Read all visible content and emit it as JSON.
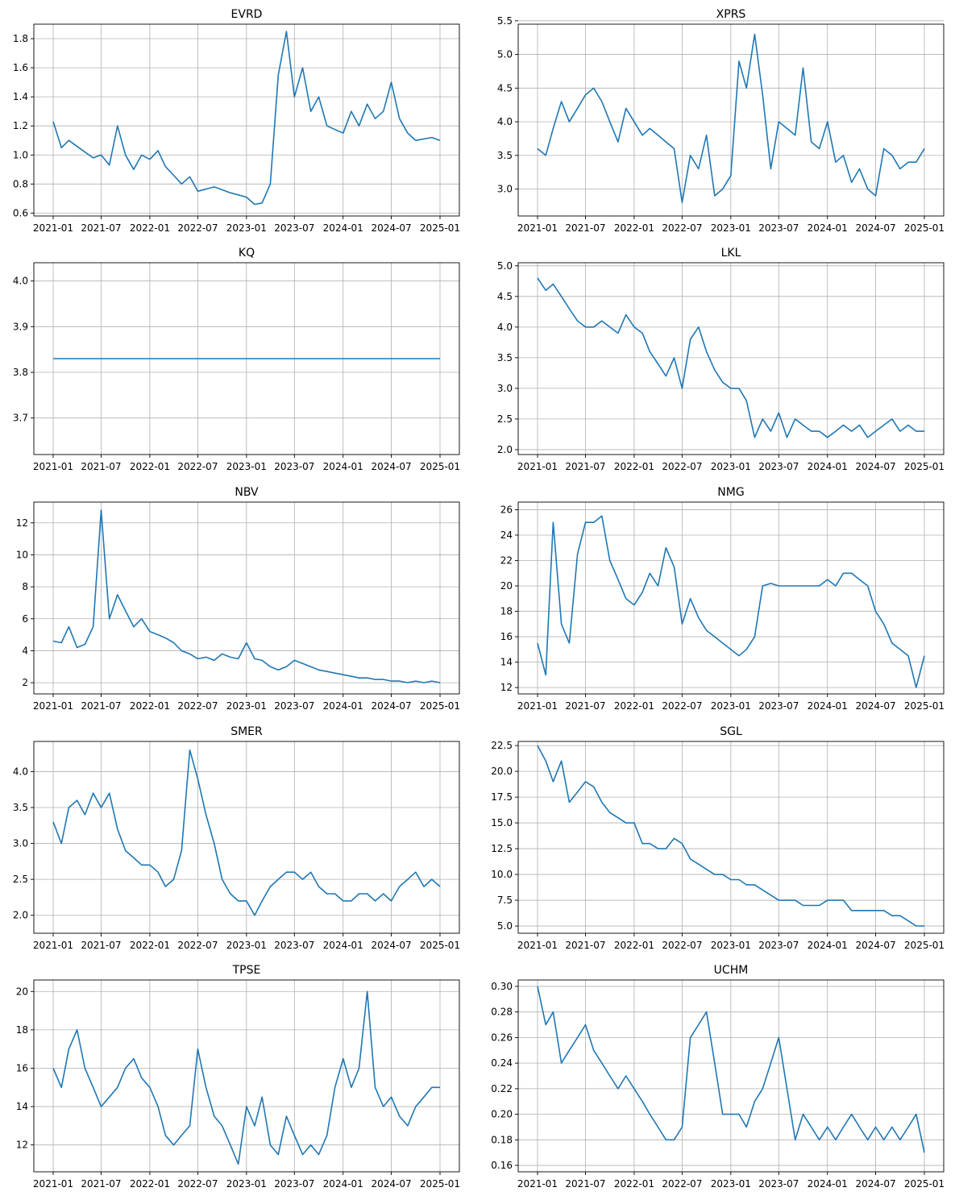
{
  "x_ticks": [
    "2021-01",
    "2021-07",
    "2022-01",
    "2022-07",
    "2023-01",
    "2023-07",
    "2024-01",
    "2024-07",
    "2025-01"
  ],
  "line_color": "#1f77b4",
  "chart_data": [
    {
      "type": "line",
      "title": "EVRD",
      "ylim": [
        0.58,
        1.9
      ],
      "y_ticks": [
        "0.6",
        "0.8",
        "1.0",
        "1.2",
        "1.4",
        "1.6",
        "1.8"
      ],
      "y_tick_values": [
        0.6,
        0.8,
        1.0,
        1.2,
        1.4,
        1.6,
        1.8
      ],
      "x": [
        "2021-01",
        "2021-02",
        "2021-03",
        "2021-05",
        "2021-06",
        "2021-07",
        "2021-08",
        "2021-09",
        "2021-10",
        "2021-11",
        "2021-12",
        "2022-01",
        "2022-02",
        "2022-03",
        "2022-04",
        "2022-05",
        "2022-06",
        "2022-07",
        "2022-09",
        "2022-11",
        "2023-01",
        "2023-02",
        "2023-03",
        "2023-04",
        "2023-05",
        "2023-06",
        "2023-07",
        "2023-08",
        "2023-09",
        "2023-10",
        "2023-11",
        "2024-01",
        "2024-02",
        "2024-03",
        "2024-04",
        "2024-05",
        "2024-06",
        "2024-07",
        "2024-08",
        "2024-09",
        "2024-10",
        "2024-12",
        "2025-01"
      ],
      "y": [
        1.23,
        1.05,
        1.1,
        1.02,
        0.98,
        1.0,
        0.93,
        1.2,
        1.0,
        0.9,
        1.0,
        0.97,
        1.03,
        0.92,
        0.86,
        0.8,
        0.85,
        0.75,
        0.78,
        0.74,
        0.71,
        0.66,
        0.67,
        0.8,
        1.55,
        1.85,
        1.4,
        1.6,
        1.3,
        1.4,
        1.2,
        1.15,
        1.3,
        1.2,
        1.35,
        1.25,
        1.3,
        1.5,
        1.25,
        1.15,
        1.1,
        1.12,
        1.1
      ]
    },
    {
      "type": "line",
      "title": "XPRS",
      "ylim": [
        2.6,
        5.45
      ],
      "y_ticks": [
        "3.0",
        "3.5",
        "4.0",
        "4.5",
        "5.0",
        "5.5"
      ],
      "y_tick_values": [
        3.0,
        3.5,
        4.0,
        4.5,
        5.0,
        5.5
      ],
      "x": [
        "2021-01",
        "2021-02",
        "2021-03",
        "2021-04",
        "2021-05",
        "2021-06",
        "2021-07",
        "2021-08",
        "2021-09",
        "2021-10",
        "2021-11",
        "2021-12",
        "2022-01",
        "2022-02",
        "2022-03",
        "2022-04",
        "2022-05",
        "2022-06",
        "2022-07",
        "2022-08",
        "2022-09",
        "2022-10",
        "2022-11",
        "2022-12",
        "2023-01",
        "2023-02",
        "2023-03",
        "2023-04",
        "2023-05",
        "2023-06",
        "2023-07",
        "2023-08",
        "2023-09",
        "2023-10",
        "2023-11",
        "2023-12",
        "2024-01",
        "2024-02",
        "2024-03",
        "2024-04",
        "2024-05",
        "2024-06",
        "2024-07",
        "2024-08",
        "2024-09",
        "2024-10",
        "2024-11",
        "2024-12",
        "2025-01"
      ],
      "y": [
        3.6,
        3.5,
        3.9,
        4.3,
        4.0,
        4.2,
        4.4,
        4.5,
        4.3,
        4.0,
        3.7,
        4.2,
        4.0,
        3.8,
        3.9,
        3.8,
        3.7,
        3.6,
        2.8,
        3.5,
        3.3,
        3.8,
        2.9,
        3.0,
        3.2,
        4.9,
        4.5,
        5.3,
        4.4,
        3.3,
        4.0,
        3.9,
        3.8,
        4.8,
        3.7,
        3.6,
        4.0,
        3.4,
        3.5,
        3.1,
        3.3,
        3.0,
        2.9,
        3.6,
        3.5,
        3.3,
        3.4,
        3.4,
        3.6
      ]
    },
    {
      "type": "line",
      "title": "KQ",
      "ylim": [
        3.62,
        4.04
      ],
      "y_ticks": [
        "3.7",
        "3.8",
        "3.9",
        "4.0"
      ],
      "y_tick_values": [
        3.7,
        3.8,
        3.9,
        4.0
      ],
      "x": [
        "2021-01",
        "2025-01"
      ],
      "y": [
        3.83,
        3.83
      ]
    },
    {
      "type": "line",
      "title": "LKL",
      "ylim": [
        1.92,
        5.05
      ],
      "y_ticks": [
        "2.0",
        "2.5",
        "3.0",
        "3.5",
        "4.0",
        "4.5",
        "5.0"
      ],
      "y_tick_values": [
        2.0,
        2.5,
        3.0,
        3.5,
        4.0,
        4.5,
        5.0
      ],
      "x": [
        "2021-01",
        "2021-02",
        "2021-03",
        "2021-04",
        "2021-05",
        "2021-06",
        "2021-07",
        "2021-08",
        "2021-09",
        "2021-10",
        "2021-11",
        "2021-12",
        "2022-01",
        "2022-02",
        "2022-03",
        "2022-04",
        "2022-05",
        "2022-06",
        "2022-07",
        "2022-08",
        "2022-09",
        "2022-10",
        "2022-11",
        "2022-12",
        "2023-01",
        "2023-02",
        "2023-03",
        "2023-04",
        "2023-05",
        "2023-06",
        "2023-07",
        "2023-08",
        "2023-09",
        "2023-10",
        "2023-11",
        "2023-12",
        "2024-01",
        "2024-02",
        "2024-03",
        "2024-04",
        "2024-05",
        "2024-06",
        "2024-07",
        "2024-08",
        "2024-09",
        "2024-10",
        "2024-11",
        "2024-12",
        "2025-01"
      ],
      "y": [
        4.8,
        4.6,
        4.7,
        4.5,
        4.3,
        4.1,
        4.0,
        4.0,
        4.1,
        4.0,
        3.9,
        4.2,
        4.0,
        3.9,
        3.6,
        3.4,
        3.2,
        3.5,
        3.0,
        3.8,
        4.0,
        3.6,
        3.3,
        3.1,
        3.0,
        3.0,
        2.8,
        2.2,
        2.5,
        2.3,
        2.6,
        2.2,
        2.5,
        2.4,
        2.3,
        2.3,
        2.2,
        2.3,
        2.4,
        2.3,
        2.4,
        2.2,
        2.3,
        2.4,
        2.5,
        2.3,
        2.4,
        2.3,
        2.3
      ]
    },
    {
      "type": "line",
      "title": "NBV",
      "ylim": [
        1.3,
        13.3
      ],
      "y_ticks": [
        "2",
        "4",
        "6",
        "8",
        "10",
        "12"
      ],
      "y_tick_values": [
        2,
        4,
        6,
        8,
        10,
        12
      ],
      "x": [
        "2021-01",
        "2021-02",
        "2021-03",
        "2021-04",
        "2021-05",
        "2021-06",
        "2021-07",
        "2021-08",
        "2021-09",
        "2021-10",
        "2021-11",
        "2021-12",
        "2022-01",
        "2022-02",
        "2022-03",
        "2022-04",
        "2022-05",
        "2022-06",
        "2022-07",
        "2022-08",
        "2022-09",
        "2022-10",
        "2022-11",
        "2022-12",
        "2023-01",
        "2023-02",
        "2023-03",
        "2023-04",
        "2023-05",
        "2023-06",
        "2023-07",
        "2023-08",
        "2023-09",
        "2023-10",
        "2023-11",
        "2023-12",
        "2024-01",
        "2024-02",
        "2024-03",
        "2024-04",
        "2024-05",
        "2024-06",
        "2024-07",
        "2024-08",
        "2024-09",
        "2024-10",
        "2024-11",
        "2024-12",
        "2025-01"
      ],
      "y": [
        4.6,
        4.5,
        5.5,
        4.2,
        4.4,
        5.5,
        12.8,
        6.0,
        7.5,
        6.5,
        5.5,
        6.0,
        5.2,
        5.0,
        4.8,
        4.5,
        4.0,
        3.8,
        3.5,
        3.6,
        3.4,
        3.8,
        3.6,
        3.5,
        4.5,
        3.5,
        3.4,
        3.0,
        2.8,
        3.0,
        3.4,
        3.2,
        3.0,
        2.8,
        2.7,
        2.6,
        2.5,
        2.4,
        2.3,
        2.3,
        2.2,
        2.2,
        2.1,
        2.1,
        2.0,
        2.1,
        2.0,
        2.1,
        2.0
      ]
    },
    {
      "type": "line",
      "title": "NMG",
      "ylim": [
        11.5,
        26.6
      ],
      "y_ticks": [
        "12",
        "14",
        "16",
        "18",
        "20",
        "22",
        "24",
        "26"
      ],
      "y_tick_values": [
        12,
        14,
        16,
        18,
        20,
        22,
        24,
        26
      ],
      "x": [
        "2021-01",
        "2021-02",
        "2021-03",
        "2021-04",
        "2021-05",
        "2021-06",
        "2021-07",
        "2021-08",
        "2021-09",
        "2021-10",
        "2021-11",
        "2021-12",
        "2022-01",
        "2022-02",
        "2022-03",
        "2022-04",
        "2022-05",
        "2022-06",
        "2022-07",
        "2022-08",
        "2022-09",
        "2022-10",
        "2022-11",
        "2022-12",
        "2023-01",
        "2023-02",
        "2023-03",
        "2023-04",
        "2023-05",
        "2023-06",
        "2023-07",
        "2023-08",
        "2023-09",
        "2023-10",
        "2023-11",
        "2023-12",
        "2024-01",
        "2024-02",
        "2024-03",
        "2024-04",
        "2024-05",
        "2024-06",
        "2024-07",
        "2024-08",
        "2024-09",
        "2024-10",
        "2024-11",
        "2024-12",
        "2025-01"
      ],
      "y": [
        15.5,
        13.0,
        25.0,
        17.0,
        15.5,
        22.5,
        25.0,
        25.0,
        25.5,
        22.0,
        20.5,
        19.0,
        18.5,
        19.5,
        21.0,
        20.0,
        23.0,
        21.5,
        17.0,
        19.0,
        17.5,
        16.5,
        16.0,
        15.5,
        15.0,
        14.5,
        15.0,
        16.0,
        20.0,
        20.2,
        20.0,
        20.0,
        20.0,
        20.0,
        20.0,
        20.0,
        20.5,
        20.0,
        21.0,
        21.0,
        20.5,
        20.0,
        18.0,
        17.0,
        15.5,
        15.0,
        14.5,
        12.0,
        14.5
      ]
    },
    {
      "type": "line",
      "title": "SMER",
      "ylim": [
        1.75,
        4.42
      ],
      "y_ticks": [
        "2.0",
        "2.5",
        "3.0",
        "3.5",
        "4.0"
      ],
      "y_tick_values": [
        2.0,
        2.5,
        3.0,
        3.5,
        4.0
      ],
      "x": [
        "2021-01",
        "2021-02",
        "2021-03",
        "2021-04",
        "2021-05",
        "2021-06",
        "2021-07",
        "2021-08",
        "2021-09",
        "2021-10",
        "2021-11",
        "2021-12",
        "2022-01",
        "2022-02",
        "2022-03",
        "2022-04",
        "2022-05",
        "2022-06",
        "2022-07",
        "2022-08",
        "2022-09",
        "2022-10",
        "2022-11",
        "2022-12",
        "2023-01",
        "2023-02",
        "2023-03",
        "2023-04",
        "2023-05",
        "2023-06",
        "2023-07",
        "2023-08",
        "2023-09",
        "2023-10",
        "2023-11",
        "2023-12",
        "2024-01",
        "2024-02",
        "2024-03",
        "2024-04",
        "2024-05",
        "2024-06",
        "2024-07",
        "2024-08",
        "2024-09",
        "2024-10",
        "2024-11",
        "2024-12",
        "2025-01"
      ],
      "y": [
        3.3,
        3.0,
        3.5,
        3.6,
        3.4,
        3.7,
        3.5,
        3.7,
        3.2,
        2.9,
        2.8,
        2.7,
        2.7,
        2.6,
        2.4,
        2.5,
        2.9,
        4.3,
        3.9,
        3.4,
        3.0,
        2.5,
        2.3,
        2.2,
        2.2,
        2.0,
        2.2,
        2.4,
        2.5,
        2.6,
        2.6,
        2.5,
        2.6,
        2.4,
        2.3,
        2.3,
        2.2,
        2.2,
        2.3,
        2.3,
        2.2,
        2.3,
        2.2,
        2.4,
        2.5,
        2.6,
        2.4,
        2.5,
        2.4
      ]
    },
    {
      "type": "line",
      "title": "SGL",
      "ylim": [
        4.3,
        22.9
      ],
      "y_ticks": [
        "5.0",
        "7.5",
        "10.0",
        "12.5",
        "15.0",
        "17.5",
        "20.0",
        "22.5"
      ],
      "y_tick_values": [
        5.0,
        7.5,
        10.0,
        12.5,
        15.0,
        17.5,
        20.0,
        22.5
      ],
      "x": [
        "2021-01",
        "2021-02",
        "2021-03",
        "2021-04",
        "2021-05",
        "2021-06",
        "2021-07",
        "2021-08",
        "2021-09",
        "2021-10",
        "2021-11",
        "2021-12",
        "2022-01",
        "2022-02",
        "2022-03",
        "2022-04",
        "2022-05",
        "2022-06",
        "2022-07",
        "2022-08",
        "2022-09",
        "2022-10",
        "2022-11",
        "2022-12",
        "2023-01",
        "2023-02",
        "2023-03",
        "2023-04",
        "2023-05",
        "2023-06",
        "2023-07",
        "2023-08",
        "2023-09",
        "2023-10",
        "2023-11",
        "2023-12",
        "2024-01",
        "2024-02",
        "2024-03",
        "2024-04",
        "2024-05",
        "2024-06",
        "2024-07",
        "2024-08",
        "2024-09",
        "2024-10",
        "2024-11",
        "2024-12",
        "2025-01"
      ],
      "y": [
        22.5,
        21.0,
        19.0,
        21.0,
        17.0,
        18.0,
        19.0,
        18.5,
        17.0,
        16.0,
        15.5,
        15.0,
        15.0,
        13.0,
        13.0,
        12.5,
        12.5,
        13.5,
        13.0,
        11.5,
        11.0,
        10.5,
        10.0,
        10.0,
        9.5,
        9.5,
        9.0,
        9.0,
        8.5,
        8.0,
        7.5,
        7.5,
        7.5,
        7.0,
        7.0,
        7.0,
        7.5,
        7.5,
        7.5,
        6.5,
        6.5,
        6.5,
        6.5,
        6.5,
        6.0,
        6.0,
        5.5,
        5.0,
        5.0
      ]
    },
    {
      "type": "line",
      "title": "TPSE",
      "ylim": [
        10.6,
        20.6
      ],
      "y_ticks": [
        "12",
        "14",
        "16",
        "18",
        "20"
      ],
      "y_tick_values": [
        12,
        14,
        16,
        18,
        20
      ],
      "x": [
        "2021-01",
        "2021-02",
        "2021-03",
        "2021-04",
        "2021-05",
        "2021-06",
        "2021-07",
        "2021-08",
        "2021-09",
        "2021-10",
        "2021-11",
        "2021-12",
        "2022-01",
        "2022-02",
        "2022-03",
        "2022-04",
        "2022-05",
        "2022-06",
        "2022-07",
        "2022-08",
        "2022-09",
        "2022-10",
        "2022-11",
        "2022-12",
        "2023-01",
        "2023-02",
        "2023-03",
        "2023-04",
        "2023-05",
        "2023-06",
        "2023-07",
        "2023-08",
        "2023-09",
        "2023-10",
        "2023-11",
        "2023-12",
        "2024-01",
        "2024-02",
        "2024-03",
        "2024-04",
        "2024-05",
        "2024-06",
        "2024-07",
        "2024-08",
        "2024-09",
        "2024-10",
        "2024-11",
        "2024-12",
        "2025-01"
      ],
      "y": [
        16.0,
        15.0,
        17.0,
        18.0,
        16.0,
        15.0,
        14.0,
        14.5,
        15.0,
        16.0,
        16.5,
        15.5,
        15.0,
        14.0,
        12.5,
        12.0,
        12.5,
        13.0,
        17.0,
        15.0,
        13.5,
        13.0,
        12.0,
        11.0,
        14.0,
        13.0,
        14.5,
        12.0,
        11.5,
        13.5,
        12.5,
        11.5,
        12.0,
        11.5,
        12.5,
        15.0,
        16.5,
        15.0,
        16.0,
        20.0,
        15.0,
        14.0,
        14.5,
        13.5,
        13.0,
        14.0,
        14.5,
        15.0,
        15.0
      ]
    },
    {
      "type": "line",
      "title": "UCHM",
      "ylim": [
        0.155,
        0.305
      ],
      "y_ticks": [
        "0.16",
        "0.18",
        "0.20",
        "0.22",
        "0.24",
        "0.26",
        "0.28",
        "0.30"
      ],
      "y_tick_values": [
        0.16,
        0.18,
        0.2,
        0.22,
        0.24,
        0.26,
        0.28,
        0.3
      ],
      "x": [
        "2021-01",
        "2021-02",
        "2021-03",
        "2021-04",
        "2021-05",
        "2021-06",
        "2021-07",
        "2021-08",
        "2021-09",
        "2021-10",
        "2021-11",
        "2021-12",
        "2022-01",
        "2022-02",
        "2022-03",
        "2022-04",
        "2022-05",
        "2022-06",
        "2022-07",
        "2022-08",
        "2022-09",
        "2022-10",
        "2022-11",
        "2022-12",
        "2023-01",
        "2023-02",
        "2023-03",
        "2023-04",
        "2023-05",
        "2023-06",
        "2023-07",
        "2023-08",
        "2023-09",
        "2023-10",
        "2023-11",
        "2023-12",
        "2024-01",
        "2024-02",
        "2024-03",
        "2024-04",
        "2024-05",
        "2024-06",
        "2024-07",
        "2024-08",
        "2024-09",
        "2024-10",
        "2024-11",
        "2024-12",
        "2025-01"
      ],
      "y": [
        0.3,
        0.27,
        0.28,
        0.24,
        0.25,
        0.26,
        0.27,
        0.25,
        0.24,
        0.23,
        0.22,
        0.23,
        0.22,
        0.21,
        0.2,
        0.19,
        0.18,
        0.18,
        0.19,
        0.26,
        0.27,
        0.28,
        0.24,
        0.2,
        0.2,
        0.2,
        0.19,
        0.21,
        0.22,
        0.24,
        0.26,
        0.22,
        0.18,
        0.2,
        0.19,
        0.18,
        0.19,
        0.18,
        0.19,
        0.2,
        0.19,
        0.18,
        0.19,
        0.18,
        0.19,
        0.18,
        0.19,
        0.2,
        0.17
      ]
    }
  ]
}
